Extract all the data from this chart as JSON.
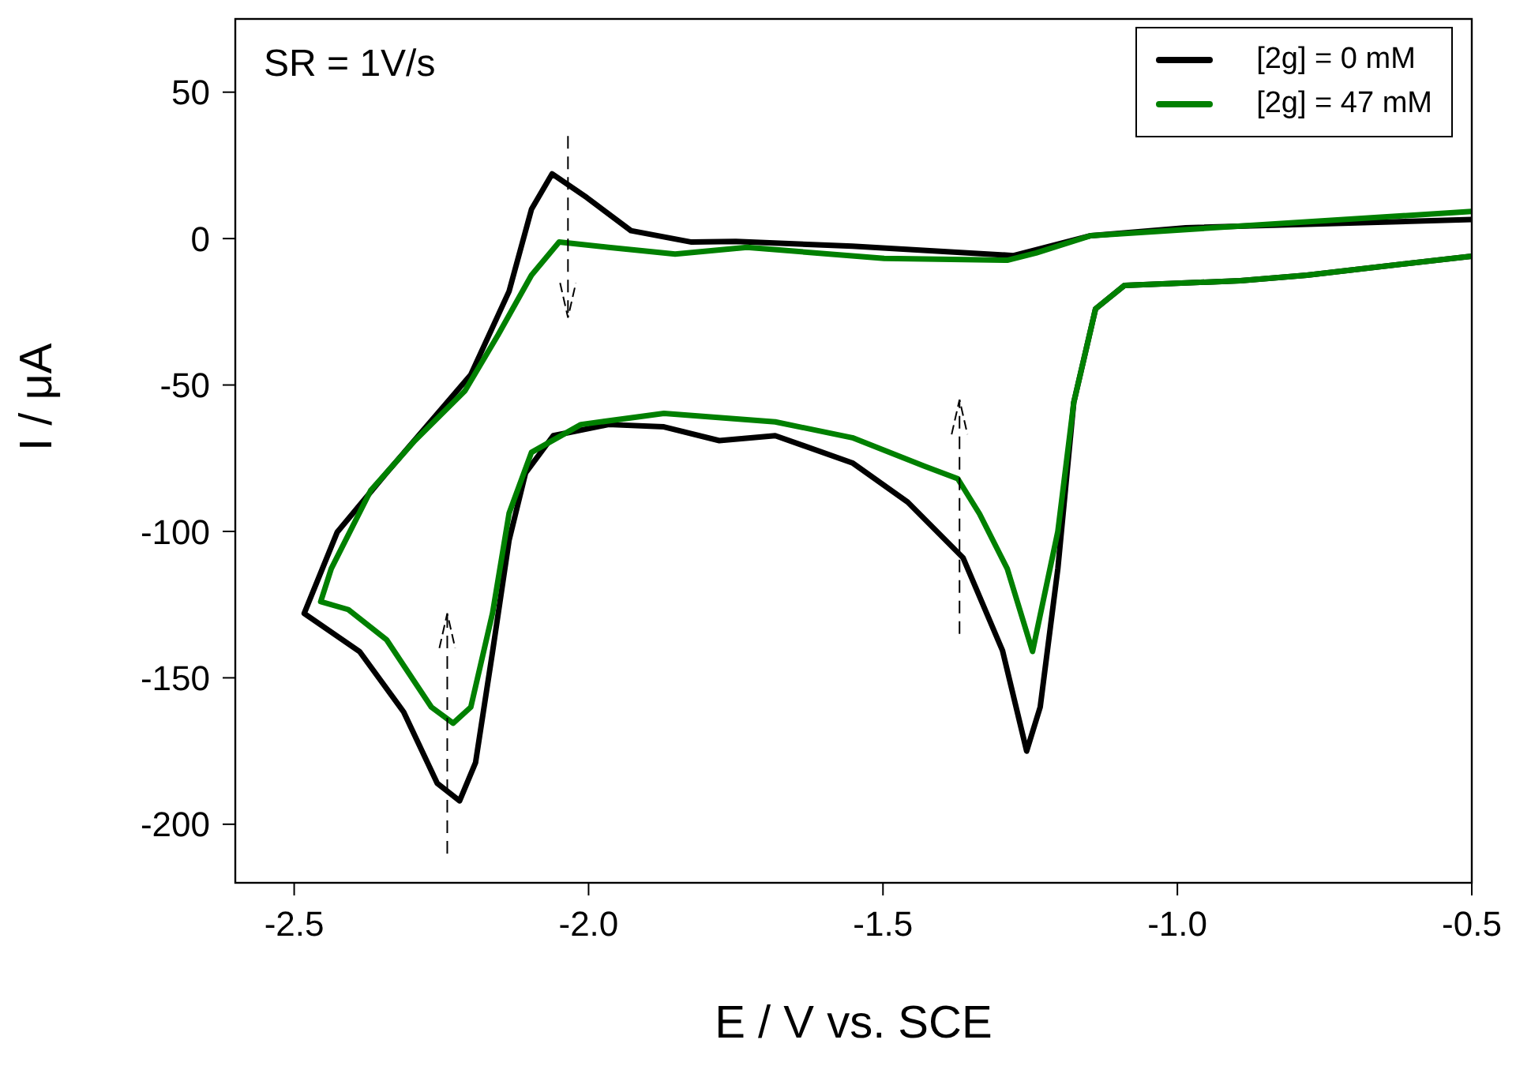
{
  "chart_data": {
    "type": "line",
    "xlabel": "E / V vs. SCE",
    "ylabel": "I / μA",
    "annotations": [
      "SR = 1V/s"
    ],
    "xlim": [
      -2.6,
      -0.5
    ],
    "xticks": [
      -2.5,
      {
        "value": -2,
        "label": "-2.0"
      },
      -1.5,
      {
        "value": -1,
        "label": "-1.0"
      },
      -0.5
    ],
    "ylim": [
      -220,
      75
    ],
    "yticks": [
      -200,
      -150,
      -100,
      -50,
      0,
      50
    ],
    "legend": "top right",
    "series": [
      {
        "name": "[2g] = 0 mM",
        "color": "#000000",
        "x": [
          -0.5,
          -0.78,
          -0.893,
          -1.09,
          -1.139,
          -1.176,
          -1.203,
          -1.233,
          -1.256,
          -1.297,
          -1.364,
          -1.458,
          -1.552,
          -1.683,
          -1.778,
          -1.872,
          -1.966,
          -2.06,
          -2.107,
          -2.135,
          -2.163,
          -2.192,
          -2.219,
          -2.257,
          -2.314,
          -2.389,
          -2.483,
          -2.427,
          -2.343,
          -2.2,
          -2.135,
          -2.097,
          -2.062,
          -2.003,
          -1.928,
          -1.825,
          -1.75,
          -1.552,
          -1.278,
          -1.147,
          -0.986,
          -0.5
        ],
        "values": [
          -6,
          -12.5,
          -14.4,
          -16,
          -24,
          -56,
          -112.7,
          -160,
          -175,
          -140.7,
          -109,
          -90,
          -76.6,
          -67.3,
          -69,
          -64.3,
          -63.5,
          -67.3,
          -80,
          -103,
          -141,
          -179,
          -192,
          -186,
          -161.7,
          -141,
          -128,
          -100.3,
          -80,
          -46.5,
          -18,
          10,
          22.1,
          14,
          2.7,
          -1.2,
          -1,
          -2.6,
          -5.8,
          1,
          3.7,
          6.5
        ]
      },
      {
        "name": "[2g] = 47 mM",
        "color": "#008000",
        "x": [
          -0.5,
          -0.78,
          -0.893,
          -1.09,
          -1.139,
          -1.176,
          -1.203,
          -1.246,
          -1.289,
          -1.336,
          -1.373,
          -1.43,
          -1.552,
          -1.683,
          -1.872,
          -2.013,
          -2.097,
          -2.135,
          -2.163,
          -2.2,
          -2.23,
          -2.267,
          -2.343,
          -2.408,
          -2.455,
          -2.437,
          -2.37,
          -2.295,
          -2.21,
          -2.154,
          -2.097,
          -2.05,
          -1.966,
          -1.853,
          -1.731,
          -1.498,
          -1.289,
          -1.24,
          -1.147,
          -0.5
        ],
        "values": [
          -6,
          -12.5,
          -14.4,
          -16,
          -24,
          -56,
          -100,
          -141,
          -112.7,
          -94,
          -82,
          -77.7,
          -68,
          -62.6,
          -59.7,
          -63.5,
          -73,
          -93.8,
          -127.8,
          -160,
          -165.5,
          -160,
          -137,
          -126.7,
          -124,
          -112.7,
          -86,
          -69,
          -52,
          -33,
          -12.5,
          -1.2,
          -3,
          -5.3,
          -3,
          -6.8,
          -7.4,
          -4.9,
          1,
          9.3
        ]
      }
    ]
  }
}
